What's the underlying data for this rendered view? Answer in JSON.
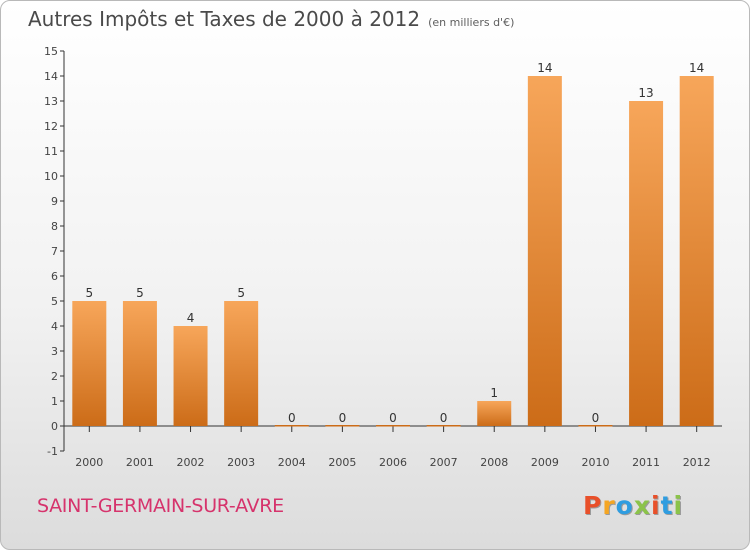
{
  "header": {
    "title": "Autres Impôts et Taxes de 2000 à 2012",
    "subtitle": "(en milliers d'€)"
  },
  "footer": {
    "place_name": "SAINT-GERMAIN-SUR-AVRE",
    "logo_text": "Proxiti",
    "logo_colors": [
      "#e8502a",
      "#f5a623",
      "#2f9de0",
      "#8bc34a",
      "#e8502a",
      "#2f9de0",
      "#8bc34a"
    ]
  },
  "colors": {
    "bar_light": "#f7a65a",
    "bar_dark": "#cc6c18",
    "axis": "#333333",
    "grid": "#c8c8c8"
  },
  "chart_data": {
    "type": "bar",
    "title": "Autres Impôts et Taxes de 2000 à 2012",
    "subtitle": "(en milliers d'€)",
    "categories": [
      "2000",
      "2001",
      "2002",
      "2003",
      "2004",
      "2005",
      "2006",
      "2007",
      "2008",
      "2009",
      "2010",
      "2011",
      "2012"
    ],
    "values": [
      5,
      5,
      4,
      5,
      0,
      0,
      0,
      0,
      1,
      14,
      0,
      13,
      14
    ],
    "data_labels": [
      "5",
      "5",
      "4",
      "5",
      "0",
      "0",
      "0",
      "0",
      "1",
      "14",
      "0",
      "13",
      "14"
    ],
    "y_ticks": [
      "-1",
      "0",
      "1",
      "2",
      "3",
      "4",
      "5",
      "6",
      "7",
      "8",
      "9",
      "10",
      "11",
      "12",
      "13",
      "14",
      "15"
    ],
    "ylim": [
      -1,
      15
    ],
    "grid": false,
    "xlabel": "",
    "ylabel": ""
  }
}
